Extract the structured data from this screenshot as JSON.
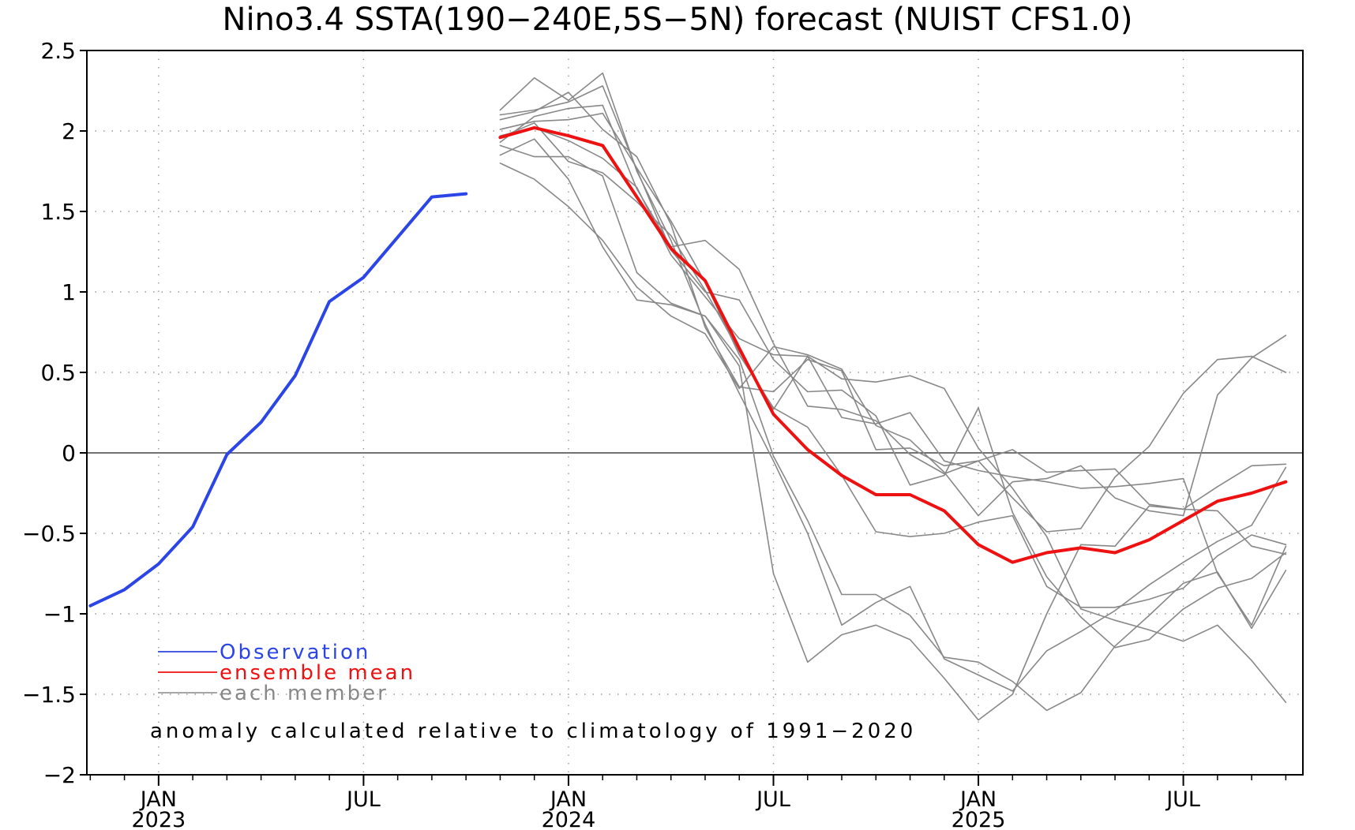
{
  "title": "Nino3.4 SSTA(190−240E,5S−5N) forecast (NUIST CFS1.0)",
  "chart_data": {
    "type": "line",
    "title": "Nino3.4 SSTA(190−240E,5S−5N) forecast (NUIST CFS1.0)",
    "xlabel": "",
    "ylabel": "",
    "x_range": [
      "2022-11",
      "2025-10"
    ],
    "ylim": [
      -2,
      2.5
    ],
    "y_ticks": [
      "2.5",
      "2",
      "1.5",
      "1",
      "0.5",
      "0",
      "−0.5",
      "−1",
      "−1.5",
      "−2"
    ],
    "y_tick_values": [
      2.5,
      2,
      1.5,
      1,
      0.5,
      0,
      -0.5,
      -1,
      -1.5,
      -2
    ],
    "x_ticks": [
      {
        "month": "2023-01",
        "label": "JAN",
        "year": "2023"
      },
      {
        "month": "2023-07",
        "label": "JUL",
        "year": ""
      },
      {
        "month": "2024-01",
        "label": "JAN",
        "year": "2024"
      },
      {
        "month": "2024-07",
        "label": "JUL",
        "year": ""
      },
      {
        "month": "2025-01",
        "label": "JAN",
        "year": "2025"
      },
      {
        "month": "2025-07",
        "label": "JUL",
        "year": ""
      }
    ],
    "grid": true,
    "zero_line": true,
    "legend_position": "bottom-left",
    "legend": [
      {
        "label": "Observation",
        "color": "#2b45e6"
      },
      {
        "label": "ensemble mean",
        "color": "#ee1111"
      },
      {
        "label": "each member",
        "color": "#888888"
      }
    ],
    "annotation": "anomaly calculated relative to climatology of 1991−2020",
    "observation": {
      "name": "Observation",
      "color": "#2b45e6",
      "x": [
        "2022-11",
        "2022-12",
        "2023-01",
        "2023-02",
        "2023-03",
        "2023-04",
        "2023-05",
        "2023-06",
        "2023-07",
        "2023-08",
        "2023-09",
        "2023-10"
      ],
      "values": [
        -0.95,
        -0.85,
        -0.69,
        -0.46,
        -0.01,
        0.19,
        0.48,
        0.94,
        1.09,
        1.34,
        1.59,
        1.61
      ]
    },
    "ensemble_mean": {
      "name": "ensemble mean",
      "color": "#ee1111",
      "x": [
        "2023-11",
        "2023-12",
        "2024-01",
        "2024-02",
        "2024-03",
        "2024-04",
        "2024-05",
        "2024-06",
        "2024-07",
        "2024-08",
        "2024-09",
        "2024-10",
        "2024-11",
        "2024-12",
        "2025-01",
        "2025-02",
        "2025-03",
        "2025-04",
        "2025-05",
        "2025-06",
        "2025-07",
        "2025-08",
        "2025-09",
        "2025-10"
      ],
      "values": [
        1.96,
        2.02,
        1.97,
        1.91,
        1.59,
        1.27,
        1.07,
        0.65,
        0.24,
        0.02,
        -0.14,
        -0.26,
        -0.26,
        -0.36,
        -0.57,
        -0.68,
        -0.62,
        -0.59,
        -0.62,
        -0.54,
        -0.42,
        -0.3,
        -0.25,
        -0.18
      ]
    },
    "members": {
      "name": "each member",
      "color": "#888888",
      "x": [
        "2023-11",
        "2023-12",
        "2024-01",
        "2024-02",
        "2024-03",
        "2024-04",
        "2024-05",
        "2024-06",
        "2024-07",
        "2024-08",
        "2024-09",
        "2024-10",
        "2024-11",
        "2024-12",
        "2025-01",
        "2025-02",
        "2025-03",
        "2025-04",
        "2025-05",
        "2025-06",
        "2025-07",
        "2025-08",
        "2025-09",
        "2025-10"
      ],
      "series": [
        [
          2.13,
          2.33,
          2.19,
          2.36,
          1.75,
          1.32,
          0.8,
          0.37,
          -0.05,
          -0.5,
          -1.07,
          -0.93,
          -0.83,
          -1.28,
          -1.38,
          -1.48,
          -1.23,
          -1.11,
          -0.98,
          -0.82,
          -0.68,
          -0.55,
          -0.45,
          -0.09
        ],
        [
          2.07,
          2.12,
          2.24,
          2.01,
          1.84,
          1.42,
          0.78,
          0.41,
          0.38,
          0.58,
          0.51,
          0.02,
          0.03,
          -0.08,
          -0.05,
          0.02,
          -0.12,
          -0.11,
          -0.1,
          -0.32,
          -0.35,
          -0.36,
          -0.58,
          -0.63
        ],
        [
          1.93,
          2.09,
          2.14,
          2.16,
          1.64,
          1.28,
          1.32,
          1.14,
          0.68,
          0.29,
          0.27,
          0.2,
          -0.01,
          -0.13,
          -0.05,
          -0.28,
          -0.49,
          -0.47,
          -0.15,
          0.04,
          0.37,
          0.58,
          0.6,
          0.5
        ],
        [
          1.8,
          1.7,
          1.53,
          1.32,
          1.03,
          0.85,
          0.74,
          0.4,
          0.66,
          0.61,
          0.52,
          0.17,
          0.08,
          -0.12,
          -0.39,
          -0.18,
          -0.16,
          -0.08,
          -0.28,
          -0.36,
          -0.39,
          0.36,
          0.59,
          0.73
        ],
        [
          2.1,
          2.13,
          2.18,
          2.28,
          1.76,
          1.26,
          1.0,
          0.95,
          0.58,
          0.38,
          0.39,
          0.23,
          -0.2,
          -0.14,
          0.28,
          -0.37,
          -0.77,
          -1.02,
          -1.21,
          -1.16,
          -0.97,
          -0.84,
          -0.78,
          -0.62
        ],
        [
          1.91,
          1.84,
          1.84,
          1.72,
          1.12,
          0.93,
          0.85,
          0.58,
          -0.02,
          -0.42,
          -0.88,
          -0.88,
          -1.01,
          -1.27,
          -1.3,
          -1.42,
          -1.6,
          -1.49,
          -1.2,
          -1.01,
          -0.81,
          -0.74,
          -1.09,
          -0.73
        ],
        [
          1.85,
          1.95,
          1.7,
          1.28,
          0.95,
          0.92,
          0.85,
          0.54,
          -0.75,
          -1.3,
          -1.13,
          -1.07,
          -1.16,
          -1.4,
          -1.66,
          -1.5,
          -1.0,
          -0.57,
          -0.58,
          -0.33,
          -0.35,
          -0.21,
          -0.08,
          -0.07
        ],
        [
          2.01,
          2.06,
          2.07,
          2.11,
          1.77,
          1.44,
          1.06,
          0.61,
          0.28,
          0.16,
          -0.14,
          -0.49,
          -0.52,
          -0.5,
          -0.43,
          -0.39,
          -0.83,
          -0.96,
          -0.96,
          -0.91,
          -0.84,
          -0.64,
          -0.51,
          -0.57
        ],
        [
          1.97,
          2.02,
          1.94,
          1.83,
          1.65,
          1.23,
          0.97,
          0.71,
          0.61,
          0.6,
          0.46,
          0.44,
          0.48,
          0.4,
          0.03,
          -0.22,
          -0.52,
          -0.97,
          -1.04,
          -1.1,
          -1.17,
          -1.07,
          -1.29,
          -1.55
        ],
        [
          1.96,
          2.05,
          1.81,
          1.74,
          1.56,
          1.35,
          1.01,
          0.63,
          0.27,
          0.6,
          0.22,
          0.18,
          0.25,
          -0.05,
          -0.11,
          -0.15,
          -0.18,
          -0.22,
          -0.21,
          -0.19,
          -0.16,
          -0.75,
          -1.07,
          -0.58
        ]
      ]
    }
  }
}
